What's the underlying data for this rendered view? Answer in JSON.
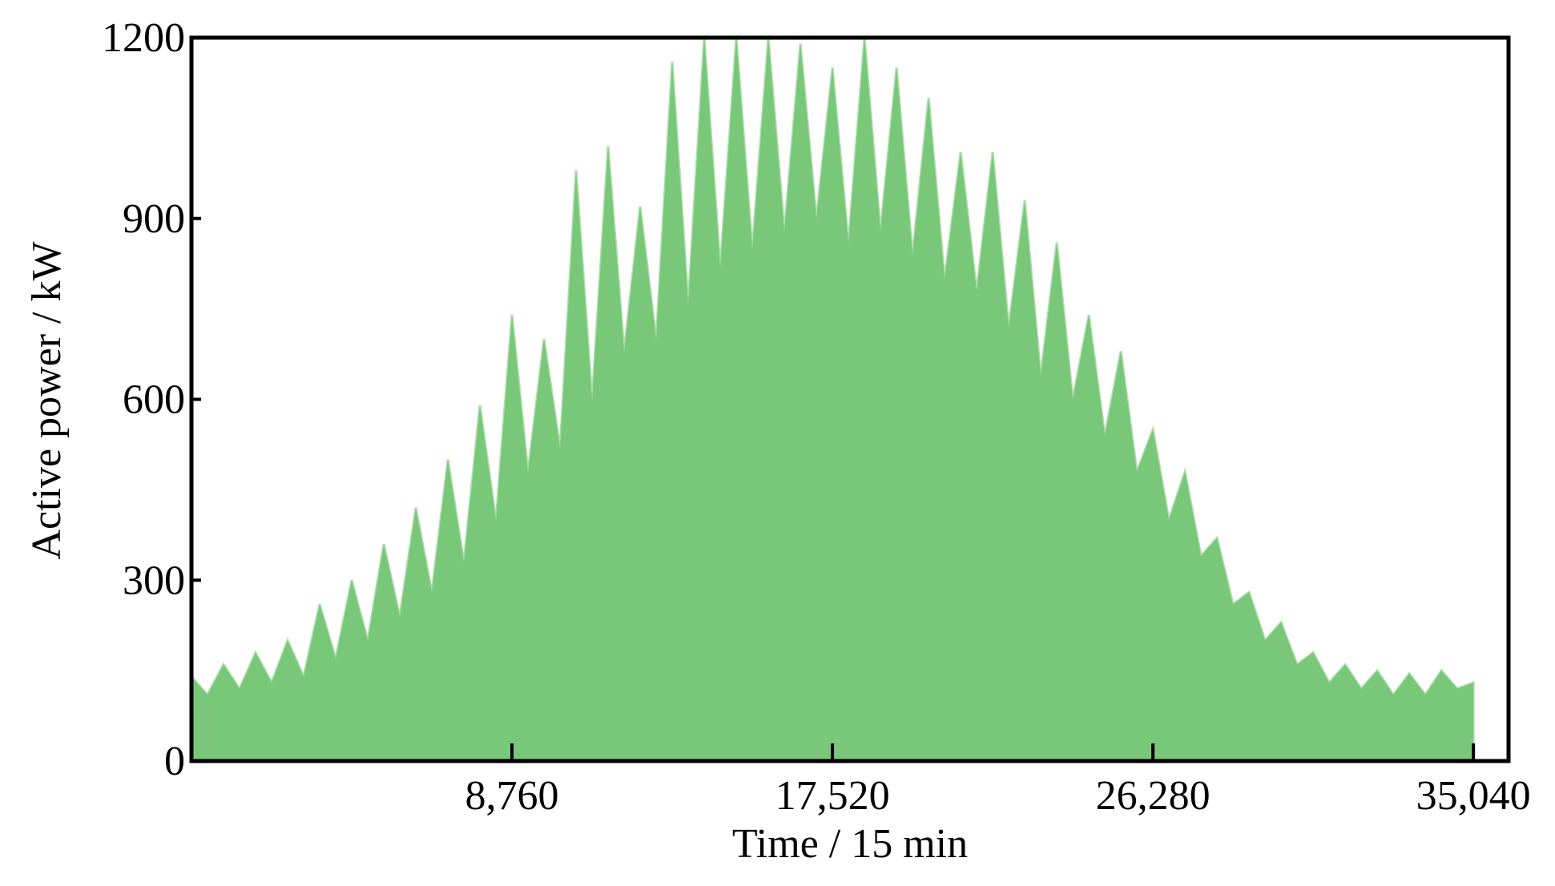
{
  "chart_data": {
    "type": "area",
    "xlabel": "Time / 15 min",
    "ylabel": "Active power / kW",
    "color": "#79c879",
    "xlim": [
      0,
      36000
    ],
    "ylim": [
      0,
      1200
    ],
    "xticks": [
      {
        "value": 8760,
        "label": "8,760"
      },
      {
        "value": 17520,
        "label": "17,520"
      },
      {
        "value": 26280,
        "label": "26,280"
      },
      {
        "value": 35040,
        "label": "35,040"
      }
    ],
    "yticks": [
      0,
      300,
      600,
      900,
      1200
    ],
    "x": [
      0,
      438,
      876,
      1314,
      1752,
      2190,
      2628,
      3066,
      3504,
      3942,
      4380,
      4818,
      5256,
      5694,
      6132,
      6570,
      7008,
      7446,
      7884,
      8322,
      8760,
      9198,
      9636,
      10074,
      10512,
      10950,
      11388,
      11826,
      12264,
      12702,
      13140,
      13578,
      14016,
      14454,
      14892,
      15330,
      15768,
      16206,
      16644,
      17082,
      17520,
      17958,
      18396,
      18834,
      19272,
      19710,
      20148,
      20586,
      21024,
      21462,
      21900,
      22338,
      22776,
      23214,
      23652,
      24090,
      24528,
      24966,
      25404,
      25842,
      26280,
      26718,
      27156,
      27594,
      28032,
      28470,
      28908,
      29346,
      29784,
      30222,
      30660,
      31098,
      31536,
      31974,
      32412,
      32850,
      33288,
      33726,
      34164,
      34602,
      35040
    ],
    "values": [
      140,
      110,
      160,
      120,
      180,
      130,
      200,
      140,
      260,
      170,
      300,
      200,
      360,
      240,
      420,
      280,
      500,
      330,
      590,
      400,
      740,
      480,
      700,
      520,
      980,
      600,
      1020,
      680,
      920,
      700,
      1160,
      760,
      1200,
      820,
      1200,
      850,
      1200,
      880,
      1190,
      900,
      1150,
      860,
      1200,
      880,
      1150,
      840,
      1100,
      800,
      1010,
      780,
      1010,
      720,
      930,
      640,
      860,
      600,
      740,
      540,
      680,
      480,
      550,
      400,
      480,
      340,
      370,
      260,
      280,
      200,
      230,
      160,
      180,
      130,
      160,
      120,
      150,
      110,
      145,
      110,
      150,
      120,
      130
    ]
  }
}
